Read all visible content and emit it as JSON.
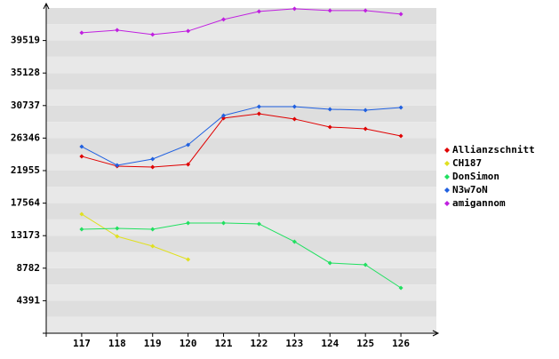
{
  "chart_data": {
    "type": "line",
    "x": [
      117,
      118,
      119,
      120,
      121,
      122,
      123,
      124,
      125,
      126
    ],
    "xlim": [
      116,
      127
    ],
    "xticks": [
      117,
      118,
      119,
      120,
      121,
      122,
      123,
      124,
      125,
      126
    ],
    "ylim": [
      0,
      43910
    ],
    "yticks": [
      4391,
      8782,
      13173,
      17564,
      21955,
      26346,
      30737,
      35128,
      39519
    ],
    "legend": "right",
    "series": [
      {
        "name": "Allianzschnitt",
        "color": "#e00000",
        "values": [
          23880,
          22560,
          22440,
          22800,
          29040,
          29640,
          28920,
          27840,
          27600,
          26640
        ]
      },
      {
        "name": "CH187",
        "color": "#e0e020",
        "values": [
          16080,
          13080,
          11760,
          9960,
          null,
          null,
          null,
          null,
          null,
          null
        ]
      },
      {
        "name": "DonSimon",
        "color": "#20e060",
        "values": [
          14040,
          14160,
          14040,
          14880,
          14880,
          14760,
          12360,
          9480,
          9240,
          6120
        ]
      },
      {
        "name": "N3w7oN",
        "color": "#2060e0",
        "values": [
          25200,
          22680,
          23520,
          25440,
          29400,
          30600,
          30600,
          30240,
          30120,
          30480
        ]
      },
      {
        "name": "amigannom",
        "color": "#c020e0",
        "values": [
          40560,
          40920,
          40320,
          40800,
          42360,
          43440,
          43800,
          43560,
          43560,
          43080
        ]
      }
    ]
  }
}
